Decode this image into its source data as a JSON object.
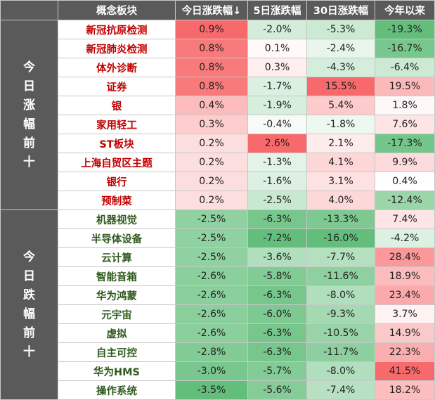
{
  "headers": [
    "",
    "概念板块",
    "今日涨跌幅↓",
    "5日涨跌幅",
    "30日涨跌幅",
    "今年以来"
  ],
  "groups": [
    {
      "label": "今日涨幅前十",
      "direction": "up",
      "rows": [
        {
          "name": "新冠抗原检测",
          "d1": "0.9%",
          "d5": "-2.0%",
          "d30": "-5.3%",
          "ytd": "-19.3%"
        },
        {
          "name": "新冠肺炎检测",
          "d1": "0.8%",
          "d5": "0.1%",
          "d30": "-2.4%",
          "ytd": "-16.7%"
        },
        {
          "name": "体外诊断",
          "d1": "0.8%",
          "d5": "0.3%",
          "d30": "-4.3%",
          "ytd": "-6.4%"
        },
        {
          "name": "证券",
          "d1": "0.8%",
          "d5": "-1.7%",
          "d30": "15.5%",
          "ytd": "19.5%"
        },
        {
          "name": "银",
          "d1": "0.4%",
          "d5": "-1.9%",
          "d30": "5.4%",
          "ytd": "1.8%"
        },
        {
          "name": "家用轻工",
          "d1": "0.3%",
          "d5": "-0.4%",
          "d30": "-1.8%",
          "ytd": "7.6%"
        },
        {
          "name": "ST板块",
          "d1": "0.2%",
          "d5": "2.6%",
          "d30": "2.1%",
          "ytd": "-17.3%"
        },
        {
          "name": "上海自贸区主题",
          "d1": "0.2%",
          "d5": "-1.3%",
          "d30": "4.1%",
          "ytd": "9.9%"
        },
        {
          "name": "银行",
          "d1": "0.2%",
          "d5": "-1.6%",
          "d30": "3.1%",
          "ytd": "0.4%"
        },
        {
          "name": "预制菜",
          "d1": "0.2%",
          "d5": "-2.5%",
          "d30": "4.0%",
          "ytd": "-12.4%"
        }
      ]
    },
    {
      "label": "今日跌幅前十",
      "direction": "down",
      "rows": [
        {
          "name": "机器视觉",
          "d1": "-2.5%",
          "d5": "-6.3%",
          "d30": "-13.3%",
          "ytd": "7.4%"
        },
        {
          "name": "半导体设备",
          "d1": "-2.5%",
          "d5": "-7.2%",
          "d30": "-16.0%",
          "ytd": "-4.2%"
        },
        {
          "name": "云计算",
          "d1": "-2.5%",
          "d5": "-3.6%",
          "d30": "-7.7%",
          "ytd": "28.4%"
        },
        {
          "name": "智能音箱",
          "d1": "-2.6%",
          "d5": "-5.8%",
          "d30": "-11.6%",
          "ytd": "18.9%"
        },
        {
          "name": "华为鸿蒙",
          "d1": "-2.6%",
          "d5": "-6.3%",
          "d30": "-8.0%",
          "ytd": "23.4%"
        },
        {
          "name": "元宇宙",
          "d1": "-2.6%",
          "d5": "-6.0%",
          "d30": "-9.3%",
          "ytd": "3.7%"
        },
        {
          "name": "虚拟",
          "d1": "-2.6%",
          "d5": "-6.3%",
          "d30": "-10.5%",
          "ytd": "14.9%"
        },
        {
          "name": "自主可控",
          "d1": "-2.8%",
          "d5": "-6.3%",
          "d30": "-11.7%",
          "ytd": "22.3%"
        },
        {
          "name": "华为HMS",
          "d1": "-3.0%",
          "d5": "-5.7%",
          "d30": "-8.0%",
          "ytd": "41.5%"
        },
        {
          "name": "操作系统",
          "d1": "-3.5%",
          "d5": "-5.6%",
          "d30": "-7.4%",
          "ytd": "18.2%"
        }
      ]
    }
  ],
  "colors": {
    "header_bg": "#5a5a5a",
    "up_text": "#c00000",
    "down_text": "#2e5a1c",
    "positive_max": "#f8696b",
    "negative_max": "#63be7b",
    "neutral": "#ffffff"
  }
}
